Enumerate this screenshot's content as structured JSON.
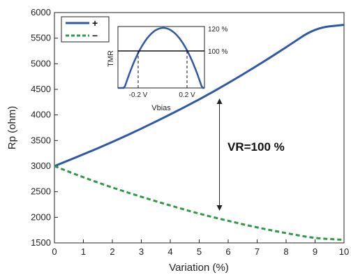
{
  "chart_data": [
    {
      "type": "line",
      "xlabel": "Variation (%)",
      "ylabel": "Rp (ohm)",
      "xlim": [
        0,
        10
      ],
      "ylim": [
        1500,
        6000
      ],
      "xticks": [
        "0",
        "1",
        "2",
        "3",
        "4",
        "5",
        "6",
        "7",
        "8",
        "9",
        "10"
      ],
      "yticks": [
        "1500",
        "2000",
        "2500",
        "3000",
        "3500",
        "4000",
        "4500",
        "5000",
        "5500",
        "6000"
      ],
      "x": [
        0,
        1,
        2,
        3,
        4,
        5,
        6,
        7,
        8,
        9,
        10
      ],
      "series": [
        {
          "name": "+",
          "style": "solid",
          "color": "#2f58a6",
          "values": [
            3000,
            3230,
            3470,
            3730,
            4010,
            4300,
            4620,
            4960,
            5320,
            5700,
            5760
          ]
        },
        {
          "name": "−",
          "style": "dashed",
          "color": "#2e9a45",
          "values": [
            3000,
            2780,
            2580,
            2400,
            2230,
            2070,
            1930,
            1800,
            1690,
            1590,
            1560
          ]
        }
      ],
      "legend": "top-left",
      "annotation": {
        "text": "VR=100 %",
        "arrow_x": 5.7,
        "arrow_from": 4350,
        "arrow_to": 2100
      }
    },
    {
      "type": "line",
      "inset": true,
      "xlabel": "Vbias",
      "ylabel": "TMR",
      "xticks": [
        "-0.2 V",
        "0.2 V"
      ],
      "yticks": [
        "120 %",
        "100 %"
      ],
      "curve": "bell",
      "reference_line": "100 %"
    }
  ],
  "colors": {
    "series_plus": "#2f58a6",
    "series_minus": "#2e9a45",
    "axes": "#222222"
  }
}
